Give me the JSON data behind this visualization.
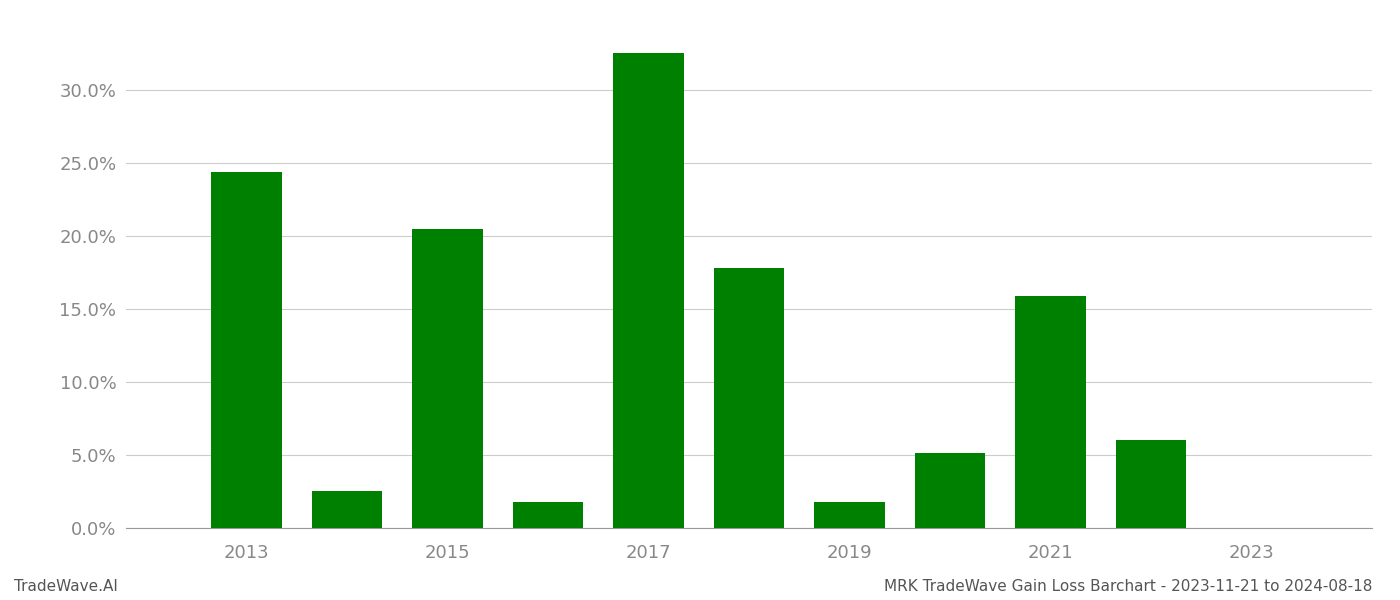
{
  "years": [
    2013,
    2014,
    2015,
    2016,
    2017,
    2018,
    2019,
    2020,
    2021,
    2022,
    2023
  ],
  "values": [
    0.244,
    0.025,
    0.205,
    0.018,
    0.325,
    0.178,
    0.018,
    0.051,
    0.159,
    0.06,
    0.0
  ],
  "bar_color": "#008000",
  "background_color": "#ffffff",
  "title": "MRK TradeWave Gain Loss Barchart - 2023-11-21 to 2024-08-18",
  "watermark": "TradeWave.AI",
  "ylabel_ticks": [
    0.0,
    0.05,
    0.1,
    0.15,
    0.2,
    0.25,
    0.3
  ],
  "ylim": [
    0,
    0.345
  ],
  "grid_color": "#cccccc",
  "title_fontsize": 11,
  "watermark_fontsize": 11,
  "tick_fontsize": 13,
  "tick_color": "#888888",
  "title_color": "#555555",
  "watermark_color": "#555555",
  "xlim": [
    2011.8,
    2024.2
  ],
  "bar_width": 0.7,
  "xticks": [
    2013,
    2015,
    2017,
    2019,
    2021,
    2023
  ]
}
